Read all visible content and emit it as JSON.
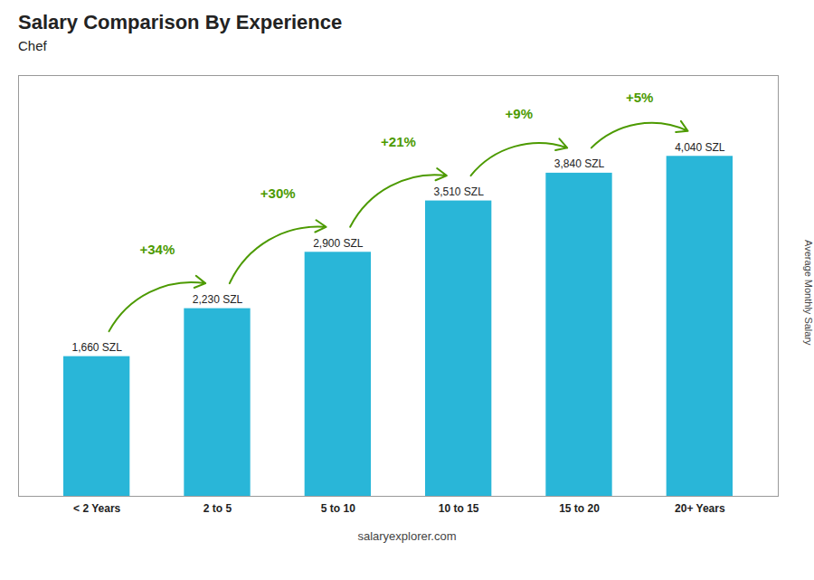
{
  "chart_data": {
    "type": "bar",
    "title": "Salary Comparison By Experience",
    "subtitle": "Chef",
    "categories": [
      "< 2 Years",
      "2 to 5",
      "5 to 10",
      "10 to 15",
      "15 to 20",
      "20+ Years"
    ],
    "values": [
      1660,
      2230,
      2900,
      3510,
      3840,
      4040
    ],
    "value_labels": [
      "1,660 SZL",
      "2,230 SZL",
      "2,900 SZL",
      "3,510 SZL",
      "3,840 SZL",
      "4,040 SZL"
    ],
    "data_labels": true,
    "color": "#29b6d8",
    "ylabel": "Average Monthly Salary",
    "ylim": [
      0,
      5000
    ],
    "tick_labels": "x",
    "annotations": [
      "+34%",
      "+30%",
      "+21%",
      "+9%",
      "+5%"
    ],
    "caption": "salaryexplorer.com"
  }
}
